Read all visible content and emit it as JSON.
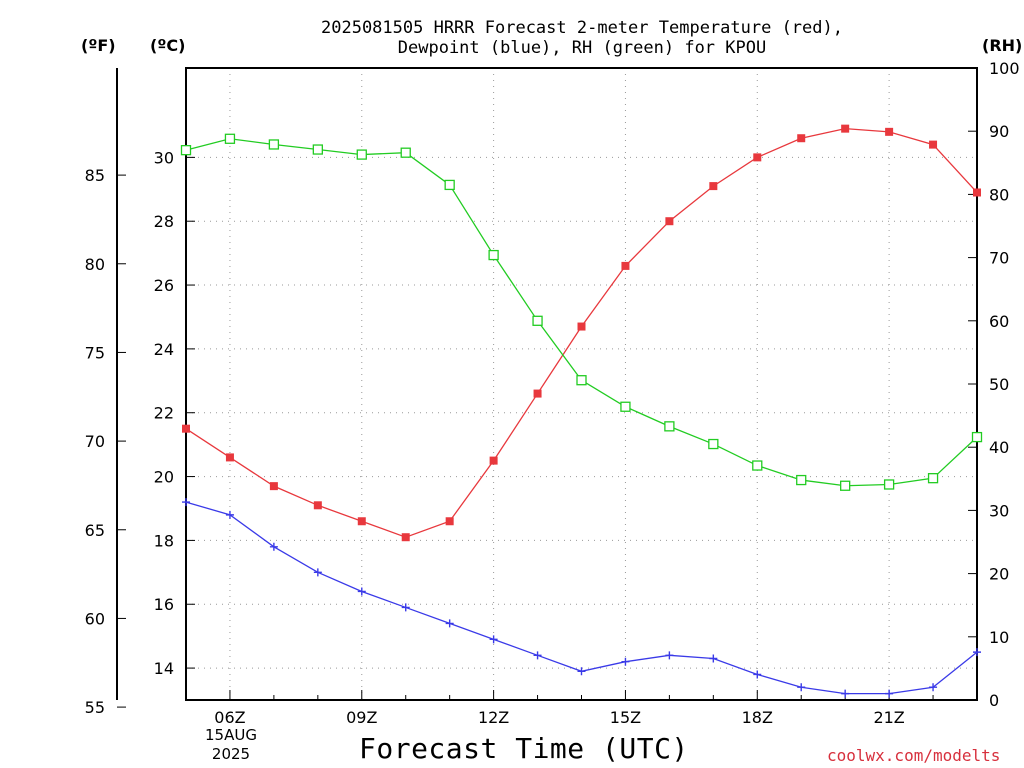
{
  "title": {
    "line1": "2025081505 HRRR Forecast 2-meter Temperature (red),",
    "line2": "Dewpoint (blue), RH (green) for KPOU"
  },
  "units": {
    "fahrenheit": "(ºF)",
    "celsius": "(ºC)",
    "rh": "(RH)"
  },
  "xlabel": "Forecast Time (UTC)",
  "credit": "coolwx.com/modelts",
  "date_label": {
    "day": "15AUG",
    "year": "2025"
  },
  "colors": {
    "temperature": "#e8383d",
    "dewpoint": "#3a3ae8",
    "rh": "#22cc22"
  },
  "chart_data": {
    "type": "line",
    "title": "2025081505 HRRR Forecast 2-meter Temperature (red), Dewpoint (blue), RH (green) for KPOU",
    "xlabel": "Forecast Time (UTC)",
    "x": [
      "05Z",
      "06Z",
      "07Z",
      "08Z",
      "09Z",
      "10Z",
      "11Z",
      "12Z",
      "13Z",
      "14Z",
      "15Z",
      "16Z",
      "17Z",
      "18Z",
      "19Z",
      "20Z",
      "21Z",
      "22Z",
      "23Z"
    ],
    "xticks": [
      "06Z",
      "09Z",
      "12Z",
      "15Z",
      "18Z",
      "21Z"
    ],
    "celsius_axis": {
      "label": "(ºC)",
      "ylim": [
        13.0,
        32.8
      ],
      "ticks": [
        14,
        16,
        18,
        20,
        22,
        24,
        26,
        28,
        30
      ]
    },
    "fahrenheit_axis": {
      "label": "(ºF)",
      "ticks": [
        55,
        60,
        65,
        70,
        75,
        80,
        85
      ]
    },
    "rh_axis": {
      "label": "(RH)",
      "ylim": [
        0,
        100
      ],
      "ticks": [
        0,
        10,
        20,
        30,
        40,
        50,
        60,
        70,
        80,
        90,
        100
      ]
    },
    "grid": true,
    "series": [
      {
        "name": "Temperature",
        "axis": "celsius",
        "marker": "filled-square",
        "values": [
          21.5,
          20.6,
          19.7,
          19.1,
          18.6,
          18.1,
          18.6,
          20.5,
          22.6,
          24.7,
          26.6,
          28.0,
          29.1,
          30.0,
          30.6,
          30.9,
          30.8,
          30.4,
          28.9
        ]
      },
      {
        "name": "Dewpoint",
        "axis": "celsius",
        "marker": "plus",
        "values": [
          19.2,
          18.8,
          17.8,
          17.0,
          16.4,
          15.9,
          15.4,
          14.9,
          14.4,
          13.9,
          14.2,
          14.4,
          14.3,
          13.8,
          13.4,
          13.2,
          13.2,
          13.4,
          14.5
        ]
      },
      {
        "name": "RH",
        "axis": "rh",
        "marker": "open-square",
        "values": [
          87.0,
          88.8,
          87.9,
          87.1,
          86.3,
          86.6,
          81.5,
          70.4,
          60.0,
          50.6,
          46.4,
          43.3,
          40.5,
          37.1,
          34.8,
          33.9,
          34.1,
          35.1,
          41.6
        ]
      }
    ]
  }
}
